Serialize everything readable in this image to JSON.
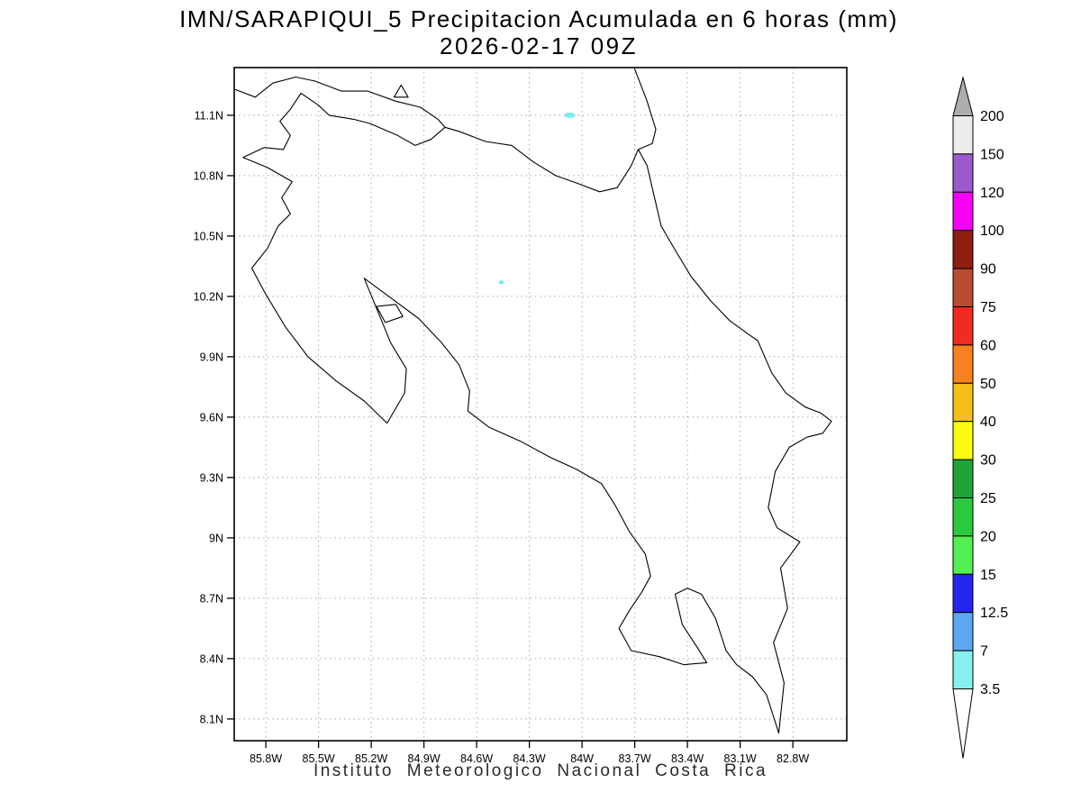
{
  "title": {
    "line1": "IMN/SARAPIQUI_5 Precipitacion Acumulada en 6 horas (mm)",
    "line2": "2026-02-17 09Z"
  },
  "caption": "Instituto Meteorologico Nacional Costa Rica",
  "map": {
    "extent": {
      "lon_min": -85.98,
      "lon_max": -82.493,
      "lat_min": 7.992,
      "lat_max": 11.337
    },
    "grid_color": "#a9a9a9",
    "coast_color": "#000000",
    "lat_ticks": [
      {
        "label": "11.1N",
        "value": 11.1
      },
      {
        "label": "10.8N",
        "value": 10.8
      },
      {
        "label": "10.5N",
        "value": 10.5
      },
      {
        "label": "10.2N",
        "value": 10.2
      },
      {
        "label": "9.9N",
        "value": 9.9
      },
      {
        "label": "9.6N",
        "value": 9.6
      },
      {
        "label": "9.3N",
        "value": 9.3
      },
      {
        "label": "9N",
        "value": 9.0
      },
      {
        "label": "8.7N",
        "value": 8.7
      },
      {
        "label": "8.4N",
        "value": 8.4
      },
      {
        "label": "8.1N",
        "value": 8.1
      }
    ],
    "lon_ticks": [
      {
        "label": "85.8W",
        "value": -85.8
      },
      {
        "label": "85.5W",
        "value": -85.5
      },
      {
        "label": "85.2W",
        "value": -85.2
      },
      {
        "label": "84.9W",
        "value": -84.9
      },
      {
        "label": "84.6W",
        "value": -84.6
      },
      {
        "label": "84.3W",
        "value": -84.3
      },
      {
        "label": "84W",
        "value": -84.0
      },
      {
        "label": "83.7W",
        "value": -83.7
      },
      {
        "label": "83.4W",
        "value": -83.4
      },
      {
        "label": "83.1W",
        "value": -83.1
      },
      {
        "label": "82.8W",
        "value": -82.8
      }
    ],
    "outlines": {
      "costa-rica": [
        [
          -85.72,
          11.07
        ],
        [
          -85.66,
          11.13
        ],
        [
          -85.6,
          11.21
        ],
        [
          -85.5,
          11.15
        ],
        [
          -85.44,
          11.1
        ],
        [
          -85.3,
          11.08
        ],
        [
          -85.21,
          11.06
        ],
        [
          -85.05,
          11.0
        ],
        [
          -84.95,
          10.95
        ],
        [
          -84.86,
          10.98
        ],
        [
          -84.78,
          11.04
        ],
        [
          -84.7,
          11.02
        ],
        [
          -84.55,
          10.97
        ],
        [
          -84.4,
          10.95
        ],
        [
          -84.28,
          10.87
        ],
        [
          -84.15,
          10.8
        ],
        [
          -84.02,
          10.76
        ],
        [
          -83.9,
          10.72
        ],
        [
          -83.8,
          10.74
        ],
        [
          -83.72,
          10.85
        ],
        [
          -83.68,
          10.93
        ],
        [
          -83.63,
          10.85
        ],
        [
          -83.59,
          10.7
        ],
        [
          -83.55,
          10.55
        ],
        [
          -83.47,
          10.43
        ],
        [
          -83.38,
          10.3
        ],
        [
          -83.27,
          10.18
        ],
        [
          -83.16,
          10.08
        ],
        [
          -83.05,
          10.01
        ],
        [
          -83.0,
          9.98
        ],
        [
          -82.92,
          9.82
        ],
        [
          -82.84,
          9.72
        ],
        [
          -82.73,
          9.65
        ],
        [
          -82.64,
          9.62
        ],
        [
          -82.58,
          9.58
        ],
        [
          -82.63,
          9.52
        ],
        [
          -82.72,
          9.5
        ],
        [
          -82.82,
          9.45
        ],
        [
          -82.9,
          9.33
        ],
        [
          -82.94,
          9.15
        ],
        [
          -82.89,
          9.05
        ],
        [
          -82.76,
          8.98
        ],
        [
          -82.87,
          8.85
        ],
        [
          -82.83,
          8.65
        ],
        [
          -82.91,
          8.48
        ],
        [
          -82.85,
          8.28
        ],
        [
          -82.88,
          8.03
        ],
        [
          -82.95,
          8.22
        ],
        [
          -83.03,
          8.31
        ],
        [
          -83.12,
          8.37
        ],
        [
          -83.18,
          8.44
        ],
        [
          -83.24,
          8.6
        ],
        [
          -83.32,
          8.72
        ],
        [
          -83.4,
          8.75
        ],
        [
          -83.47,
          8.72
        ],
        [
          -83.43,
          8.57
        ],
        [
          -83.34,
          8.45
        ],
        [
          -83.29,
          8.38
        ],
        [
          -83.42,
          8.37
        ],
        [
          -83.56,
          8.41
        ],
        [
          -83.72,
          8.44
        ],
        [
          -83.79,
          8.55
        ],
        [
          -83.73,
          8.64
        ],
        [
          -83.66,
          8.73
        ],
        [
          -83.61,
          8.81
        ],
        [
          -83.64,
          8.92
        ],
        [
          -83.73,
          9.03
        ],
        [
          -83.81,
          9.16
        ],
        [
          -83.89,
          9.27
        ],
        [
          -84.03,
          9.34
        ],
        [
          -84.18,
          9.4
        ],
        [
          -84.35,
          9.48
        ],
        [
          -84.53,
          9.55
        ],
        [
          -84.65,
          9.63
        ],
        [
          -84.64,
          9.73
        ],
        [
          -84.7,
          9.86
        ],
        [
          -84.8,
          9.97
        ],
        [
          -84.93,
          10.09
        ],
        [
          -85.1,
          10.2
        ],
        [
          -85.24,
          10.29
        ],
        [
          -85.16,
          10.12
        ],
        [
          -85.09,
          9.97
        ],
        [
          -85.0,
          9.84
        ],
        [
          -85.01,
          9.72
        ],
        [
          -85.11,
          9.57
        ],
        [
          -85.24,
          9.68
        ],
        [
          -85.4,
          9.78
        ],
        [
          -85.56,
          9.9
        ],
        [
          -85.69,
          10.05
        ],
        [
          -85.8,
          10.21
        ],
        [
          -85.88,
          10.34
        ],
        [
          -85.79,
          10.44
        ],
        [
          -85.73,
          10.55
        ],
        [
          -85.66,
          10.61
        ],
        [
          -85.71,
          10.69
        ],
        [
          -85.65,
          10.77
        ],
        [
          -85.79,
          10.84
        ],
        [
          -85.93,
          10.89
        ],
        [
          -85.81,
          10.94
        ],
        [
          -85.7,
          10.93
        ],
        [
          -85.66,
          11.0
        ],
        [
          -85.72,
          11.07
        ]
      ],
      "lake-nicaragua-shore": [
        [
          -85.98,
          11.23
        ],
        [
          -85.86,
          11.19
        ],
        [
          -85.76,
          11.26
        ],
        [
          -85.63,
          11.29
        ],
        [
          -85.52,
          11.27
        ],
        [
          -85.37,
          11.22
        ],
        [
          -85.22,
          11.22
        ],
        [
          -85.06,
          11.17
        ],
        [
          -84.92,
          11.14
        ],
        [
          -84.82,
          11.08
        ],
        [
          -84.78,
          11.04
        ]
      ],
      "nicaragua-caribbean-coast": [
        [
          -83.7,
          11.33
        ],
        [
          -83.63,
          11.17
        ],
        [
          -83.58,
          11.03
        ],
        [
          -83.6,
          10.96
        ],
        [
          -83.68,
          10.93
        ]
      ],
      "lake-island": [
        [
          -85.07,
          11.19
        ],
        [
          -84.99,
          11.19
        ],
        [
          -85.03,
          11.25
        ],
        [
          -85.07,
          11.19
        ]
      ],
      "chira-island": [
        [
          -85.17,
          10.15
        ],
        [
          -85.06,
          10.16
        ],
        [
          -85.02,
          10.1
        ],
        [
          -85.12,
          10.07
        ],
        [
          -85.17,
          10.15
        ]
      ]
    },
    "precip_marks": [
      {
        "lon": -84.07,
        "lat": 11.1,
        "rx": 6,
        "ry": 3,
        "color": "#79EDF2"
      },
      {
        "lon": -84.46,
        "lat": 10.27,
        "rx": 3,
        "ry": 2.2,
        "color": "#79EDF2"
      }
    ]
  },
  "colorbar": {
    "tick_labels": [
      "200",
      "150",
      "120",
      "100",
      "90",
      "75",
      "60",
      "50",
      "40",
      "30",
      "25",
      "20",
      "15",
      "12.5",
      "7",
      "3.5"
    ],
    "top_triangle_color": "#ADADAD",
    "bottom_triangle_color": "#FFFFFF",
    "band_colors": [
      "#ECECEC",
      "#9C59CE",
      "#F700F7",
      "#8F1D12",
      "#BA4B2F",
      "#EF2C21",
      "#F5821E",
      "#F5BE19",
      "#FBFB10",
      "#1FA43A",
      "#2BC93F",
      "#53F053",
      "#2525EF",
      "#5CA7F2",
      "#86EFEF"
    ]
  }
}
